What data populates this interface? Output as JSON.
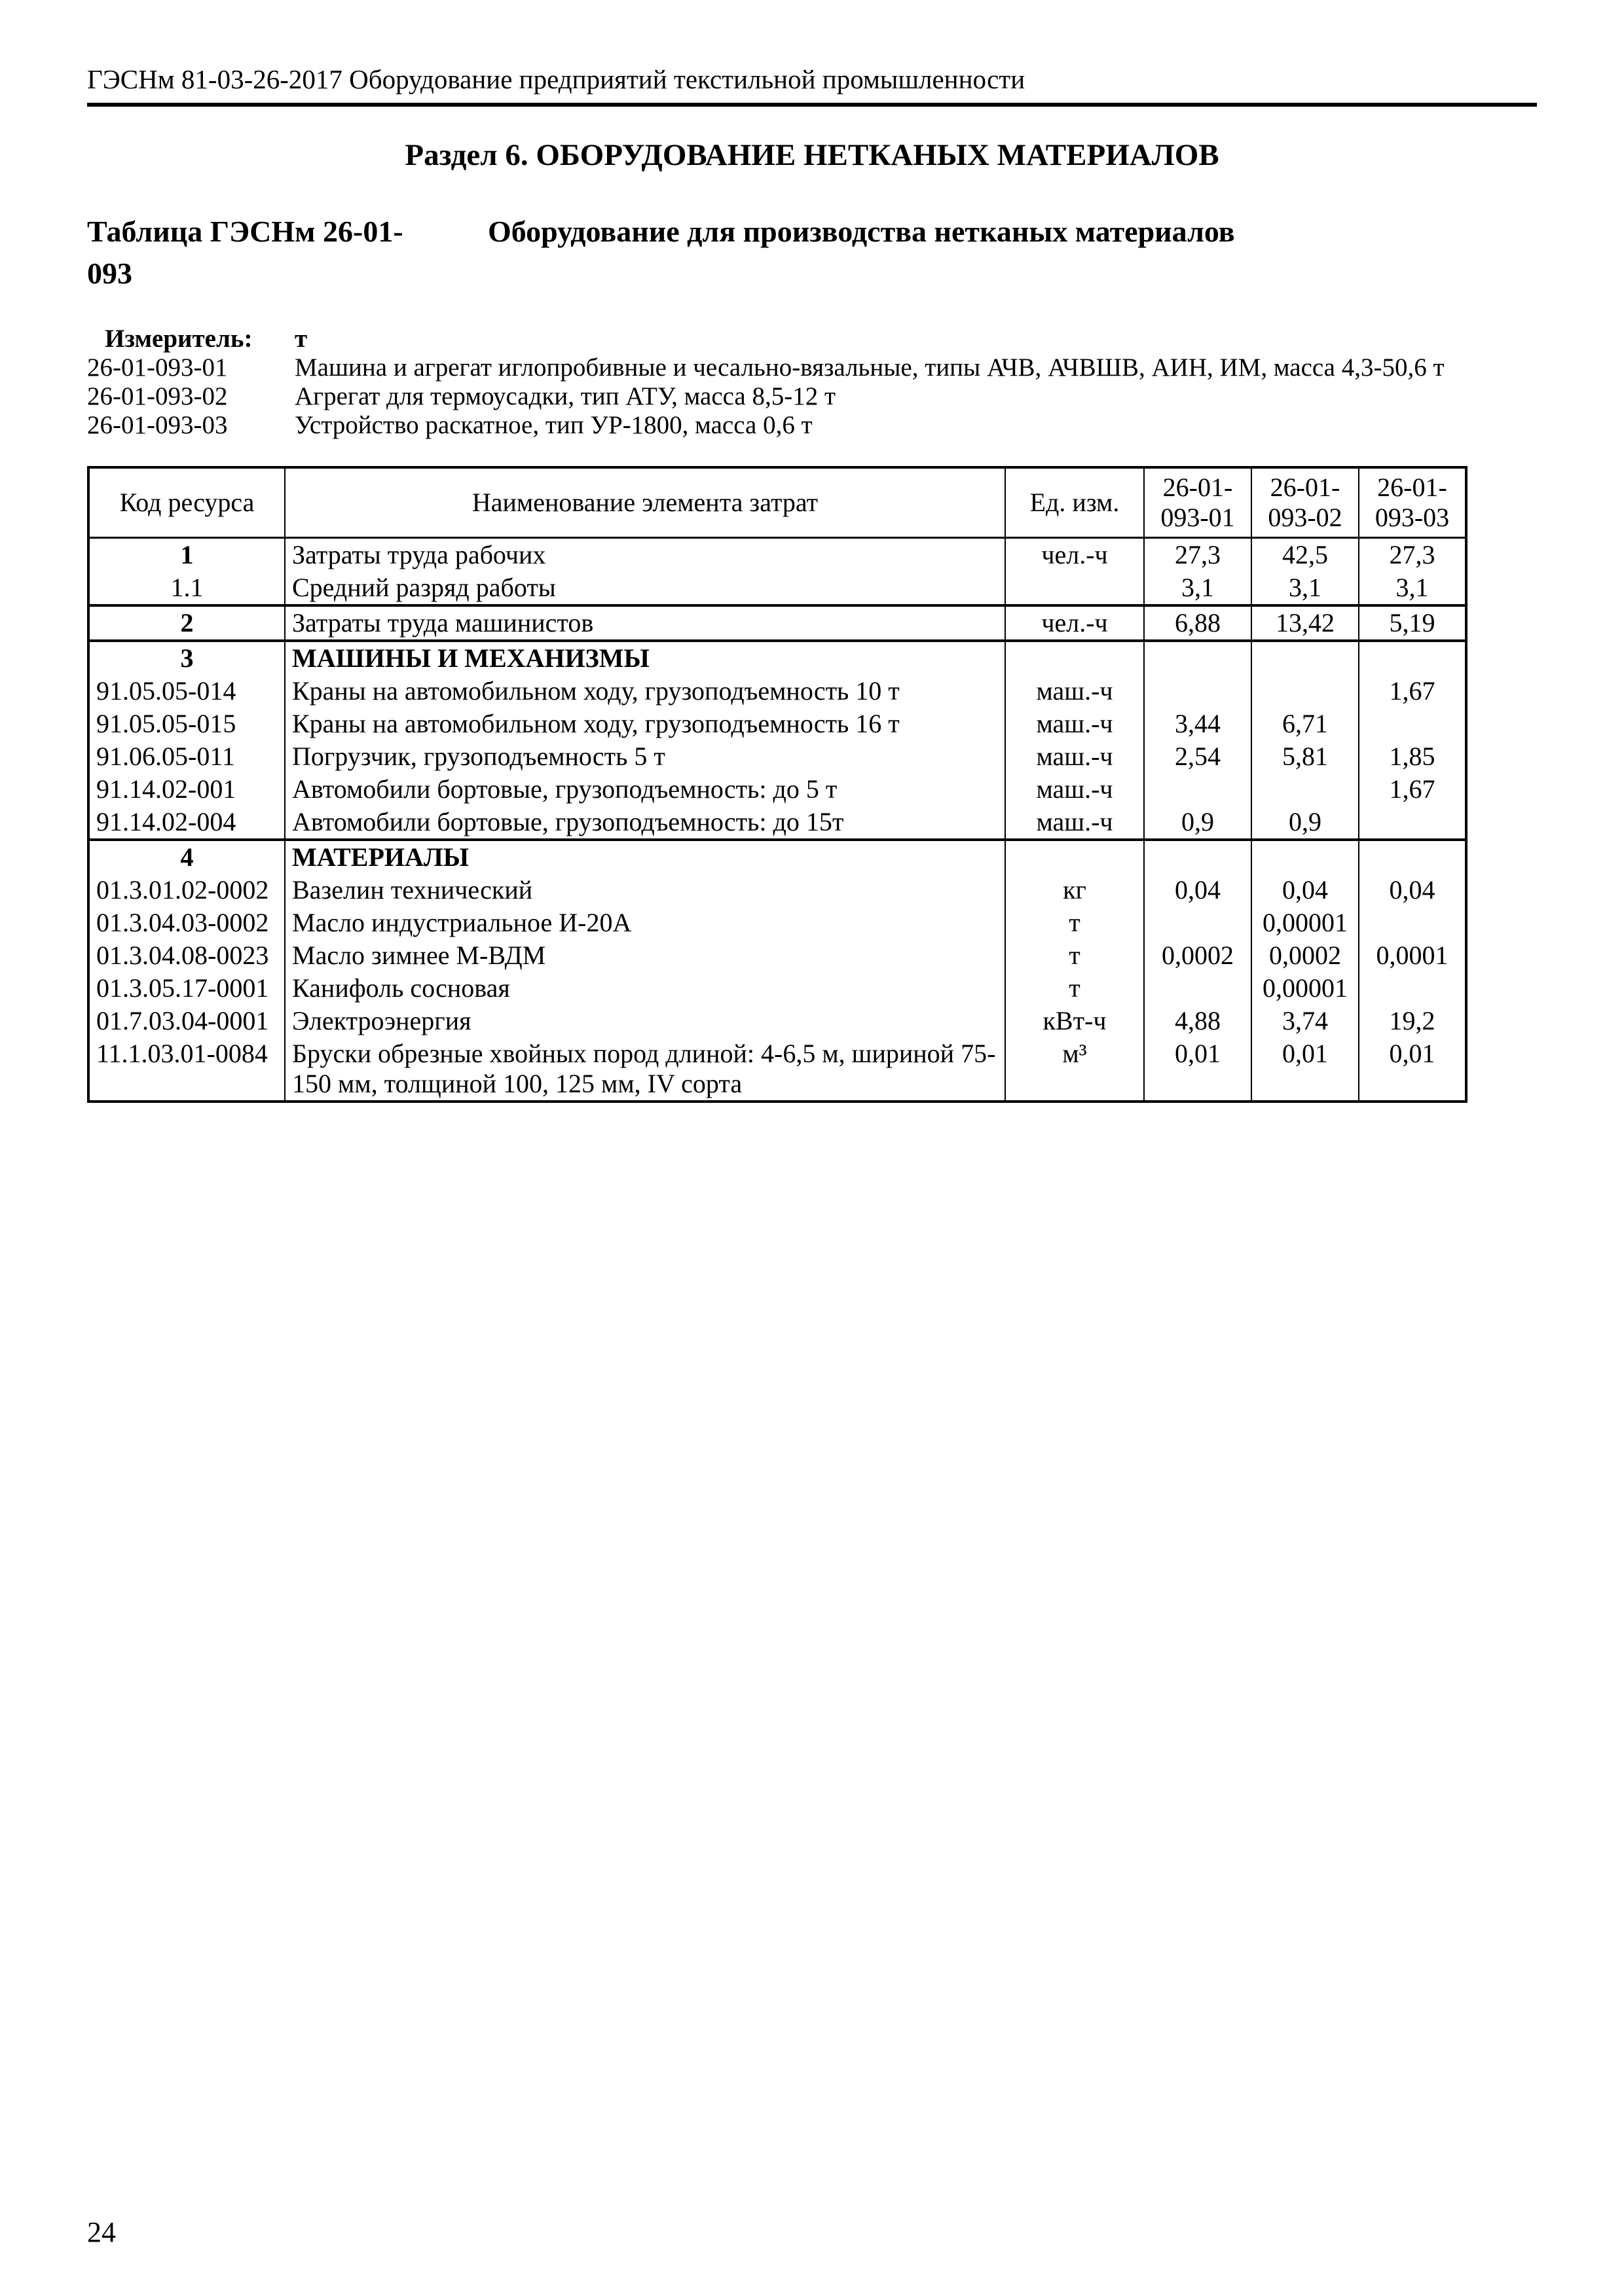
{
  "page": {
    "header": "ГЭСНм 81-03-26-2017 Оборудование предприятий текстильной промышленности",
    "section_title": "Раздел 6. ОБОРУДОВАНИЕ НЕТКАНЫХ МАТЕРИАЛОВ",
    "page_number": "24"
  },
  "table_block": {
    "label_line1": "Таблица ГЭСНм 26-01-",
    "label_line2": "093",
    "title": "Оборудование для производства нетканых материалов"
  },
  "measurer": {
    "label": "Измеритель:",
    "value": "т",
    "items": [
      {
        "code": "26-01-093-01",
        "desc": "Машина и агрегат иглопробивные и чесально-вязальные, типы АЧВ, АЧВШВ, АИН, ИМ, масса 4,3-50,6 т"
      },
      {
        "code": "26-01-093-02",
        "desc": "Агрегат для термоусадки, тип АТУ, масса 8,5-12 т"
      },
      {
        "code": "26-01-093-03",
        "desc": "Устройство раскатное, тип УР-1800, масса 0,6 т"
      }
    ]
  },
  "cost_table": {
    "col_headers": {
      "code": "Код ресурса",
      "name": "Наименование элемента затрат",
      "unit": "Ед. изм.",
      "t1": [
        "26-01-",
        "093-01"
      ],
      "t2": [
        "26-01-",
        "093-02"
      ],
      "t3": [
        "26-01-",
        "093-03"
      ]
    },
    "rows": [
      {
        "code": "1",
        "name": "Затраты труда рабочих",
        "unit": "чел.-ч",
        "v1": "27,3",
        "v2": "42,5",
        "v3": "27,3"
      },
      {
        "code": "1.1",
        "name": "Средний разряд работы",
        "unit": "",
        "v1": "3,1",
        "v2": "3,1",
        "v3": "3,1"
      },
      {
        "code": "2",
        "name": "Затраты труда машинистов",
        "unit": "чел.-ч",
        "v1": "6,88",
        "v2": "13,42",
        "v3": "5,19"
      },
      {
        "code": "3",
        "name": "МАШИНЫ И МЕХАНИЗМЫ",
        "unit": "",
        "v1": "",
        "v2": "",
        "v3": ""
      },
      {
        "code": "91.05.05-014",
        "name": "Краны на автомобильном ходу, грузоподъемность 10 т",
        "unit": "маш.-ч",
        "v1": "",
        "v2": "",
        "v3": "1,67"
      },
      {
        "code": "91.05.05-015",
        "name": "Краны на автомобильном ходу, грузоподъемность 16 т",
        "unit": "маш.-ч",
        "v1": "3,44",
        "v2": "6,71",
        "v3": ""
      },
      {
        "code": "91.06.05-011",
        "name": "Погрузчик, грузоподъемность 5 т",
        "unit": "маш.-ч",
        "v1": "2,54",
        "v2": "5,81",
        "v3": "1,85"
      },
      {
        "code": "91.14.02-001",
        "name": "Автомобили бортовые, грузоподъемность: до 5 т",
        "unit": "маш.-ч",
        "v1": "",
        "v2": "",
        "v3": "1,67"
      },
      {
        "code": "91.14.02-004",
        "name": "Автомобили бортовые, грузоподъемность: до 15т",
        "unit": "маш.-ч",
        "v1": "0,9",
        "v2": "0,9",
        "v3": ""
      },
      {
        "code": "4",
        "name": "МАТЕРИАЛЫ",
        "unit": "",
        "v1": "",
        "v2": "",
        "v3": ""
      },
      {
        "code": "01.3.01.02-0002",
        "name": "Вазелин технический",
        "unit": "кг",
        "v1": "0,04",
        "v2": "0,04",
        "v3": "0,04"
      },
      {
        "code": "01.3.04.03-0002",
        "name": "Масло индустриальное И-20А",
        "unit": "т",
        "v1": "",
        "v2": "0,00001",
        "v3": ""
      },
      {
        "code": "01.3.04.08-0023",
        "name": "Масло зимнее М-ВДМ",
        "unit": "т",
        "v1": "0,0002",
        "v2": "0,0002",
        "v3": "0,0001"
      },
      {
        "code": "01.3.05.17-0001",
        "name": "Канифоль сосновая",
        "unit": "т",
        "v1": "",
        "v2": "0,00001",
        "v3": ""
      },
      {
        "code": "01.7.03.04-0001",
        "name": "Электроэнергия",
        "unit": "кВт-ч",
        "v1": "4,88",
        "v2": "3,74",
        "v3": "19,2"
      },
      {
        "code": "11.1.03.01-0084",
        "name": "Бруски обрезные хвойных пород длиной: 4-6,5 м, шириной 75-150 мм, толщиной 100, 125 мм, IV сорта",
        "unit": "м³",
        "v1": "0,01",
        "v2": "0,01",
        "v3": "0,01"
      }
    ]
  }
}
